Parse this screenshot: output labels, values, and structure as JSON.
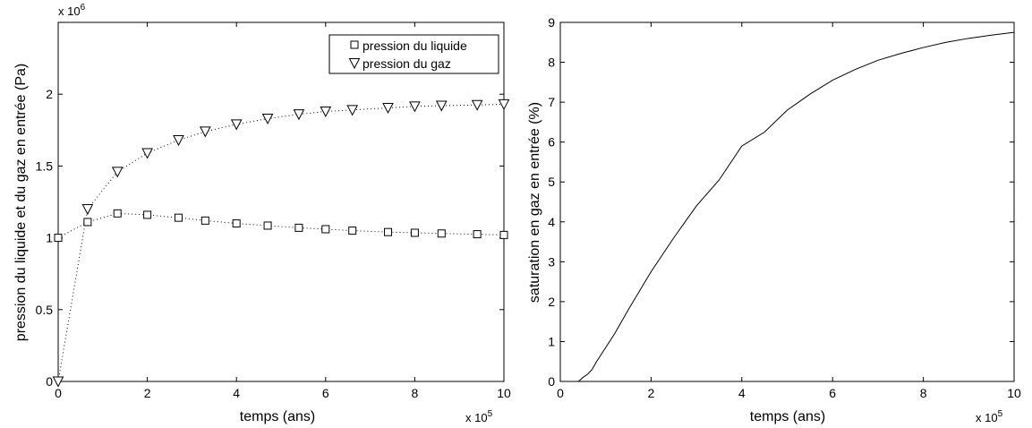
{
  "chart_data": [
    {
      "type": "line",
      "title": "",
      "xlabel": "temps (ans)",
      "ylabel": "pression du liquide et du gaz en entrée (Pa)",
      "x_multiplier": "x 10",
      "x_multiplier_exp": "5",
      "y_multiplier": "x 10",
      "y_multiplier_exp": "6",
      "xlim": [
        0,
        10
      ],
      "ylim": [
        0,
        2.5
      ],
      "xticks": [
        0,
        2,
        4,
        6,
        8,
        10
      ],
      "xtick_labels": [
        "0",
        "2",
        "4",
        "6",
        "8",
        "10"
      ],
      "yticks": [
        0,
        0.5,
        1,
        1.5,
        2
      ],
      "ytick_labels": [
        "0",
        "0.5",
        "1",
        "1.5",
        "2"
      ],
      "grid": false,
      "legend_position": "top-right",
      "series": [
        {
          "name": "pression du liquide",
          "marker": "square",
          "line_style": "dotted",
          "x": [
            0,
            0.66,
            1.33,
            2.0,
            2.7,
            3.3,
            4.0,
            4.7,
            5.4,
            6.0,
            6.6,
            7.4,
            8.0,
            8.6,
            9.4,
            10.0
          ],
          "y": [
            1.0,
            1.11,
            1.17,
            1.16,
            1.14,
            1.12,
            1.1,
            1.085,
            1.07,
            1.06,
            1.05,
            1.04,
            1.035,
            1.03,
            1.025,
            1.02
          ]
        },
        {
          "name": "pression du gaz",
          "marker": "triangle-down",
          "line_style": "dotted",
          "x": [
            0,
            0.66,
            1.33,
            2.0,
            2.7,
            3.3,
            4.0,
            4.7,
            5.4,
            6.0,
            6.6,
            7.4,
            8.0,
            8.6,
            9.4,
            10.0
          ],
          "y": [
            0.0,
            1.2,
            1.46,
            1.59,
            1.68,
            1.74,
            1.79,
            1.83,
            1.86,
            1.88,
            1.89,
            1.905,
            1.915,
            1.92,
            1.925,
            1.93
          ]
        }
      ]
    },
    {
      "type": "line",
      "title": "",
      "xlabel": "temps (ans)",
      "ylabel": "saturation en gaz en entrée (%)",
      "x_multiplier": "x 10",
      "x_multiplier_exp": "5",
      "xlim": [
        0,
        10
      ],
      "ylim": [
        0,
        9
      ],
      "xticks": [
        0,
        2,
        4,
        6,
        8,
        10
      ],
      "xtick_labels": [
        "0",
        "2",
        "4",
        "6",
        "8",
        "10"
      ],
      "yticks": [
        0,
        1,
        2,
        3,
        4,
        5,
        6,
        7,
        8,
        9
      ],
      "ytick_labels": [
        "0",
        "1",
        "2",
        "3",
        "4",
        "5",
        "6",
        "7",
        "8",
        "9"
      ],
      "grid": false,
      "series": [
        {
          "line_style": "solid",
          "x": [
            0.4,
            0.5,
            0.6,
            0.7,
            0.8,
            1.0,
            1.2,
            1.5,
            2.0,
            2.5,
            3.0,
            3.5,
            4.0,
            4.5,
            5.0,
            5.5,
            6.0,
            6.5,
            7.0,
            7.5,
            8.0,
            8.5,
            9.0,
            9.5,
            10.0
          ],
          "y": [
            0.0,
            0.1,
            0.18,
            0.3,
            0.5,
            0.85,
            1.2,
            1.8,
            2.75,
            3.6,
            4.4,
            5.05,
            5.9,
            6.25,
            6.8,
            7.2,
            7.55,
            7.82,
            8.05,
            8.22,
            8.37,
            8.5,
            8.6,
            8.68,
            8.75
          ]
        }
      ]
    }
  ]
}
